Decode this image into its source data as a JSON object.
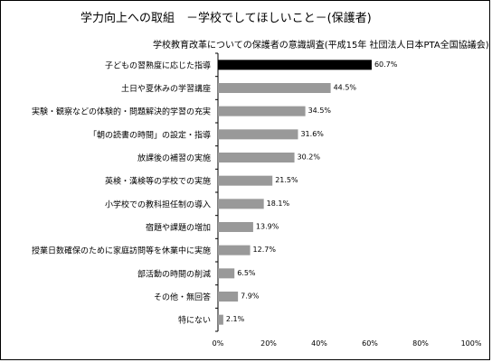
{
  "chart_data": {
    "type": "bar",
    "orientation": "horizontal",
    "title": "学力向上への取組　－学校でしてほしいこと－(保護者)",
    "subtitle": "学校教育改革についての保護者の意識調査(平成15年 社団法人日本PTA全国協議会)",
    "categories": [
      "子どもの習熟度に応じた指導",
      "土日や夏休みの学習講座",
      "実験・観察などの体験的・問題解決的学習の充実",
      "「朝の読書の時間」の設定・指導",
      "放課後の補習の実施",
      "英検・漢検等の学校での実施",
      "小学校での教科担任制の導入",
      "宿題や課題の増加",
      "授業日数確保のために家庭訪問等を休業中に実施",
      "部活動の時間の削減",
      "その他・無回答",
      "特にない"
    ],
    "values": [
      60.7,
      44.5,
      34.5,
      31.6,
      30.2,
      21.5,
      18.1,
      13.9,
      12.7,
      6.5,
      7.9,
      2.1
    ],
    "value_labels": [
      "60.7%",
      "44.5%",
      "34.5%",
      "31.6%",
      "30.2%",
      "21.5%",
      "18.1%",
      "13.9%",
      "12.7%",
      "6.5%",
      "7.9%",
      "2.1%"
    ],
    "xlim": [
      0,
      100
    ],
    "xticks": [
      0,
      20,
      40,
      60,
      80,
      100
    ],
    "xtick_labels": [
      "0%",
      "20%",
      "40%",
      "60%",
      "80%",
      "100%"
    ],
    "highlight_index": 0,
    "highlight_color": "#000000",
    "bar_color": "#999999",
    "grid": false
  }
}
